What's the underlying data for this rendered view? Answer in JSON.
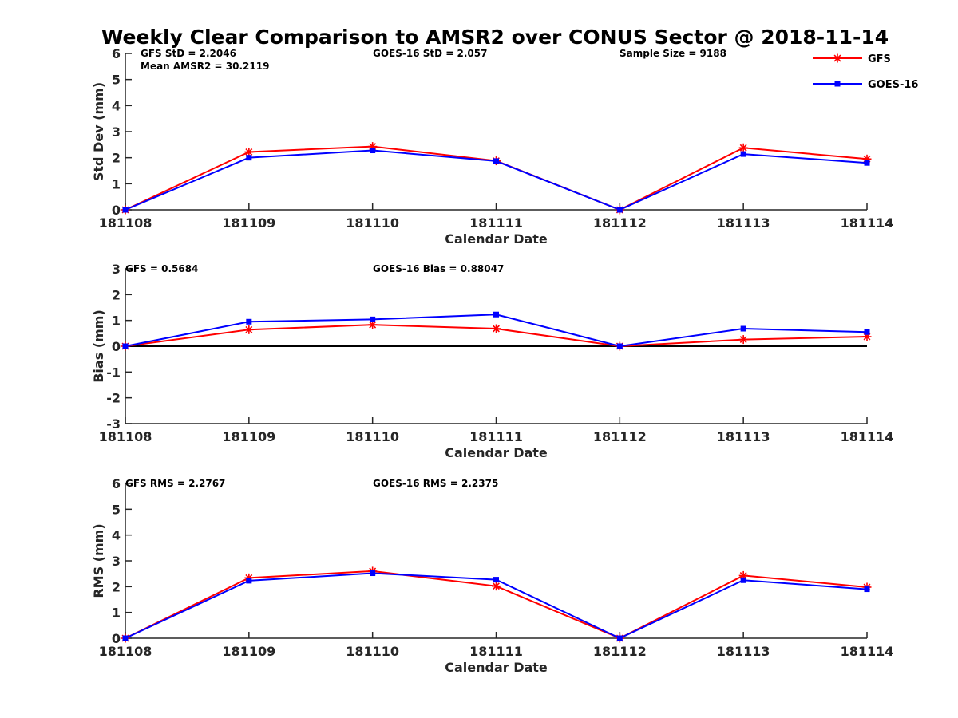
{
  "title": "Weekly Clear Comparison to AMSR2 over CONUS Sector @ 2018-11-14",
  "legend": {
    "placement": "top-right",
    "entries": [
      {
        "name": "GFS",
        "color": "#ff0000",
        "marker": "asterisk"
      },
      {
        "name": "GOES-16",
        "color": "#0000ff",
        "marker": "square"
      }
    ]
  },
  "chart_data": [
    {
      "type": "line",
      "ylabel": "Std Dev (mm)",
      "xlabel": "Calendar Date",
      "ylim": [
        0,
        6
      ],
      "yticks": [
        "0",
        "1",
        "2",
        "3",
        "4",
        "5",
        "6"
      ],
      "categories": [
        "181108",
        "181109",
        "181110",
        "181111",
        "181112",
        "181113",
        "181114"
      ],
      "zero_line": false,
      "annotations": [
        "GFS StD = 2.2046",
        "Mean AMSR2 = 30.2119",
        "GOES-16 StD = 2.057",
        "Sample Size = 9188"
      ],
      "series": [
        {
          "name": "GFS",
          "values": [
            0,
            2.22,
            2.43,
            1.88,
            0,
            2.38,
            1.95
          ]
        },
        {
          "name": "GOES-16",
          "values": [
            0,
            2.0,
            2.28,
            1.87,
            0,
            2.14,
            1.8
          ]
        }
      ]
    },
    {
      "type": "line",
      "ylabel": "Bias (mm)",
      "xlabel": "Calendar Date",
      "ylim": [
        -3,
        3
      ],
      "yticks": [
        "-3",
        "-2",
        "-1",
        "0",
        "1",
        "2",
        "3"
      ],
      "categories": [
        "181108",
        "181109",
        "181110",
        "181111",
        "181112",
        "181113",
        "181114"
      ],
      "zero_line": true,
      "annotations": [
        "GFS = 0.5684",
        "GOES-16 Bias  = 0.88047"
      ],
      "series": [
        {
          "name": "GFS",
          "values": [
            0,
            0.64,
            0.83,
            0.68,
            0,
            0.26,
            0.37
          ]
        },
        {
          "name": "GOES-16",
          "values": [
            0,
            0.95,
            1.04,
            1.23,
            0,
            0.68,
            0.55
          ]
        }
      ]
    },
    {
      "type": "line",
      "ylabel": "RMS (mm)",
      "xlabel": "Calendar Date",
      "ylim": [
        0,
        6
      ],
      "yticks": [
        "0",
        "1",
        "2",
        "3",
        "4",
        "5",
        "6"
      ],
      "categories": [
        "181108",
        "181109",
        "181110",
        "181111",
        "181112",
        "181113",
        "181114"
      ],
      "zero_line": false,
      "annotations": [
        "GFS RMS = 2.2767",
        "GOES-16 RMS = 2.2375"
      ],
      "series": [
        {
          "name": "GFS",
          "values": [
            0,
            2.34,
            2.6,
            2.02,
            0,
            2.43,
            1.98
          ]
        },
        {
          "name": "GOES-16",
          "values": [
            0,
            2.23,
            2.52,
            2.27,
            0,
            2.25,
            1.9
          ]
        }
      ]
    }
  ]
}
